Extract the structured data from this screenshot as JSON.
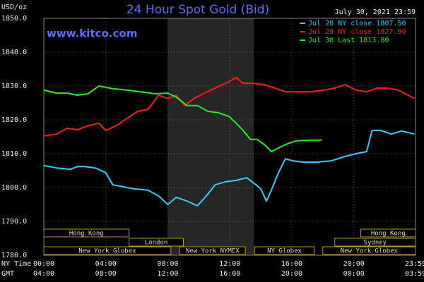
{
  "chart_data": {
    "type": "line",
    "title": "24 Hour Spot Gold (Bid)",
    "site": "www.kitco.com",
    "timestamp": "July 30, 2021 23:59",
    "y_label": "USD/oz",
    "x_row_labels": [
      "NY Time",
      "GMT"
    ],
    "xlim": [
      0,
      23.98
    ],
    "ylim": [
      1780,
      1850
    ],
    "xticks": [
      {
        "value": 0,
        "label": "00:00"
      },
      {
        "value": 4,
        "label": "04:00"
      },
      {
        "value": 8,
        "label": "08:00"
      },
      {
        "value": 12,
        "label": "12:00"
      },
      {
        "value": 16,
        "label": "16:00"
      },
      {
        "value": 20,
        "label": "20:00"
      },
      {
        "value": 23.98,
        "label": "23:59"
      }
    ],
    "gmt_labels": [
      "04:00",
      "08:00",
      "12:00",
      "16:00",
      "20:00",
      "00:00",
      "03:59"
    ],
    "yticks": [
      {
        "value": 1780,
        "label": "1780.0"
      },
      {
        "value": 1790,
        "label": "1790.0"
      },
      {
        "value": 1800,
        "label": "1800.0"
      },
      {
        "value": 1810,
        "label": "1810.0"
      },
      {
        "value": 1820,
        "label": "1820.0"
      },
      {
        "value": 1830,
        "label": "1830.0"
      },
      {
        "value": 1840,
        "label": "1840.0"
      },
      {
        "value": 1850,
        "label": "1850.0"
      }
    ],
    "grid": true,
    "legend": "top-right",
    "highlight": {
      "start": 8,
      "end": 13.55,
      "color": "#262626"
    },
    "session_rows": [
      [
        {
          "name": "Hong Kong",
          "start": 0,
          "end": 5.5
        },
        {
          "name": "Hong Kong",
          "start": 20.45,
          "end": 23.98
        }
      ],
      [
        {
          "name": "London",
          "start": 5.5,
          "end": 9
        },
        {
          "name": "Sydney",
          "start": 18.77,
          "end": 23.98
        }
      ],
      [
        {
          "name": "New York Globex",
          "start": 0,
          "end": 8.2
        },
        {
          "name": "New York NYMEX",
          "start": 8.77,
          "end": 13
        },
        {
          "name": "NY Globex",
          "start": 13.6,
          "end": 17.45
        },
        {
          "name": "New York Globex",
          "start": 18,
          "end": 23.98
        }
      ]
    ],
    "session_color": "#b89a10",
    "series": [
      {
        "name": "Jul 28 NY close 1807.50",
        "color": "#33ccff",
        "x": [
          0,
          0.82,
          1.73,
          2.18,
          2.64,
          3.32,
          4,
          4.45,
          5.14,
          5.82,
          6.73,
          7.41,
          8,
          8.55,
          9.23,
          9.91,
          10.59,
          11.05,
          11.73,
          12.41,
          13.09,
          13.55,
          14,
          14.36,
          14.68,
          15.14,
          15.59,
          16.05,
          16.73,
          17.64,
          18.55,
          19.45,
          20.14,
          20.82,
          21.18,
          21.73,
          22.41,
          23.09,
          23.91
        ],
        "values": [
          1806.5,
          1805.8,
          1805.4,
          1806.2,
          1806.2,
          1805.8,
          1804.4,
          1800.8,
          1800.2,
          1799.6,
          1799.2,
          1797.5,
          1795,
          1797.1,
          1796.0,
          1794.6,
          1798.1,
          1800.8,
          1801.7,
          1802.1,
          1802.9,
          1801.3,
          1799.6,
          1796.0,
          1799.2,
          1804.4,
          1808.5,
          1807.9,
          1807.5,
          1807.5,
          1807.9,
          1809.2,
          1810,
          1810.6,
          1816.9,
          1816.9,
          1815.8,
          1816.7,
          1815.8
        ]
      },
      {
        "name": "Jul 29 NY close 1827.90",
        "color": "#ff1a1a",
        "x": [
          0,
          0.82,
          1.5,
          2.18,
          2.86,
          3.55,
          4,
          4.68,
          5.36,
          6.05,
          6.73,
          7.41,
          8,
          8.55,
          9.09,
          9.68,
          10.36,
          11.05,
          11.73,
          12.41,
          12.86,
          13.55,
          14.23,
          14.91,
          15.59,
          16.27,
          17.18,
          18.09,
          18.77,
          19.45,
          20.14,
          20.82,
          21.5,
          22.18,
          22.86,
          23.91
        ],
        "values": [
          1815.2,
          1815.8,
          1817.5,
          1817.1,
          1818.3,
          1819.0,
          1816.9,
          1818.3,
          1820.4,
          1822.5,
          1823.1,
          1827.3,
          1826.3,
          1827.3,
          1824.2,
          1826.3,
          1827.9,
          1829.4,
          1830.8,
          1832.5,
          1830.8,
          1830.8,
          1830.4,
          1829.4,
          1828.3,
          1828.3,
          1828.3,
          1828.8,
          1829.4,
          1830.4,
          1828.8,
          1828.3,
          1829.4,
          1829.4,
          1828.8,
          1826.3
        ]
      },
      {
        "name": "Jul 30 Last 1813.80",
        "color": "#22ee22",
        "x": [
          0,
          0.82,
          1.5,
          2.18,
          2.86,
          3.55,
          4.45,
          5.36,
          6.27,
          7.18,
          8,
          8.55,
          9.23,
          9.91,
          10.59,
          11.27,
          11.95,
          12.41,
          12.86,
          13.32,
          13.77,
          14.23,
          14.68,
          15.14,
          15.59,
          16.27,
          17.18,
          17.95
        ],
        "values": [
          1828.8,
          1827.9,
          1827.9,
          1827.3,
          1827.7,
          1830,
          1829.2,
          1828.8,
          1828.3,
          1827.7,
          1827.9,
          1826.7,
          1824.2,
          1824.2,
          1822.5,
          1822.1,
          1821.0,
          1819.0,
          1816.9,
          1814.2,
          1814.2,
          1812.7,
          1810.6,
          1811.7,
          1812.7,
          1813.8,
          1814.0,
          1814.0
        ]
      }
    ]
  }
}
